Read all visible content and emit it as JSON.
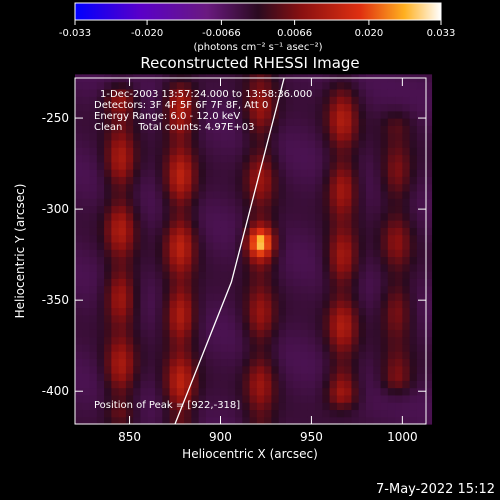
{
  "chart_data": {
    "type": "heatmap",
    "title": "Reconstructed RHESSI Image",
    "xlabel": "Heliocentric X (arcsec)",
    "ylabel": "Heliocentric Y (arcsec)",
    "xlim": [
      820,
      1013
    ],
    "ylim": [
      -418,
      -228
    ],
    "xticks": [
      850,
      900,
      950,
      1000
    ],
    "yticks": [
      -250,
      -300,
      -350,
      -400
    ],
    "colorbar": {
      "colormap": "rhessi-red-temperature",
      "range": [
        -0.033,
        0.033
      ],
      "ticks": [
        "-0.033",
        "-0.020",
        "-0.0066",
        "0.0066",
        "0.020",
        "0.033"
      ],
      "unit_label": "(photons cm⁻² s⁻¹ asec⁻²)"
    },
    "annotations": [
      "1-Dec-2003 13:57:24.000 to 13:58:36.000",
      "Detectors: 3F 4F 5F 6F 7F 8F, Att 0",
      "Energy Range: 6.0 - 12.0 keV",
      "Clean     Total counts: 4.97E+03"
    ],
    "peak_label": "Position of Peak = [922,-318]",
    "peak": {
      "x": 922,
      "y": -318,
      "value": 0.033
    },
    "limb_line": {
      "points": [
        [
          875,
          -418
        ],
        [
          906,
          -340
        ],
        [
          935,
          -228
        ]
      ]
    },
    "ridges": [
      {
        "x": 845,
        "y_range": [
          -408,
          -242
        ],
        "amplitude": 0.014
      },
      {
        "x": 878,
        "y_range": [
          -418,
          -238
        ],
        "amplitude": 0.016
      },
      {
        "x": 922,
        "y_range": [
          -418,
          -228
        ],
        "amplitude": 0.012
      },
      {
        "x": 967,
        "y_range": [
          -400,
          -238
        ],
        "amplitude": 0.014
      },
      {
        "x": 997,
        "y_range": [
          -392,
          -258
        ],
        "amplitude": 0.01
      }
    ]
  },
  "footer": {
    "timestamp": "7-May-2022 15:12"
  }
}
